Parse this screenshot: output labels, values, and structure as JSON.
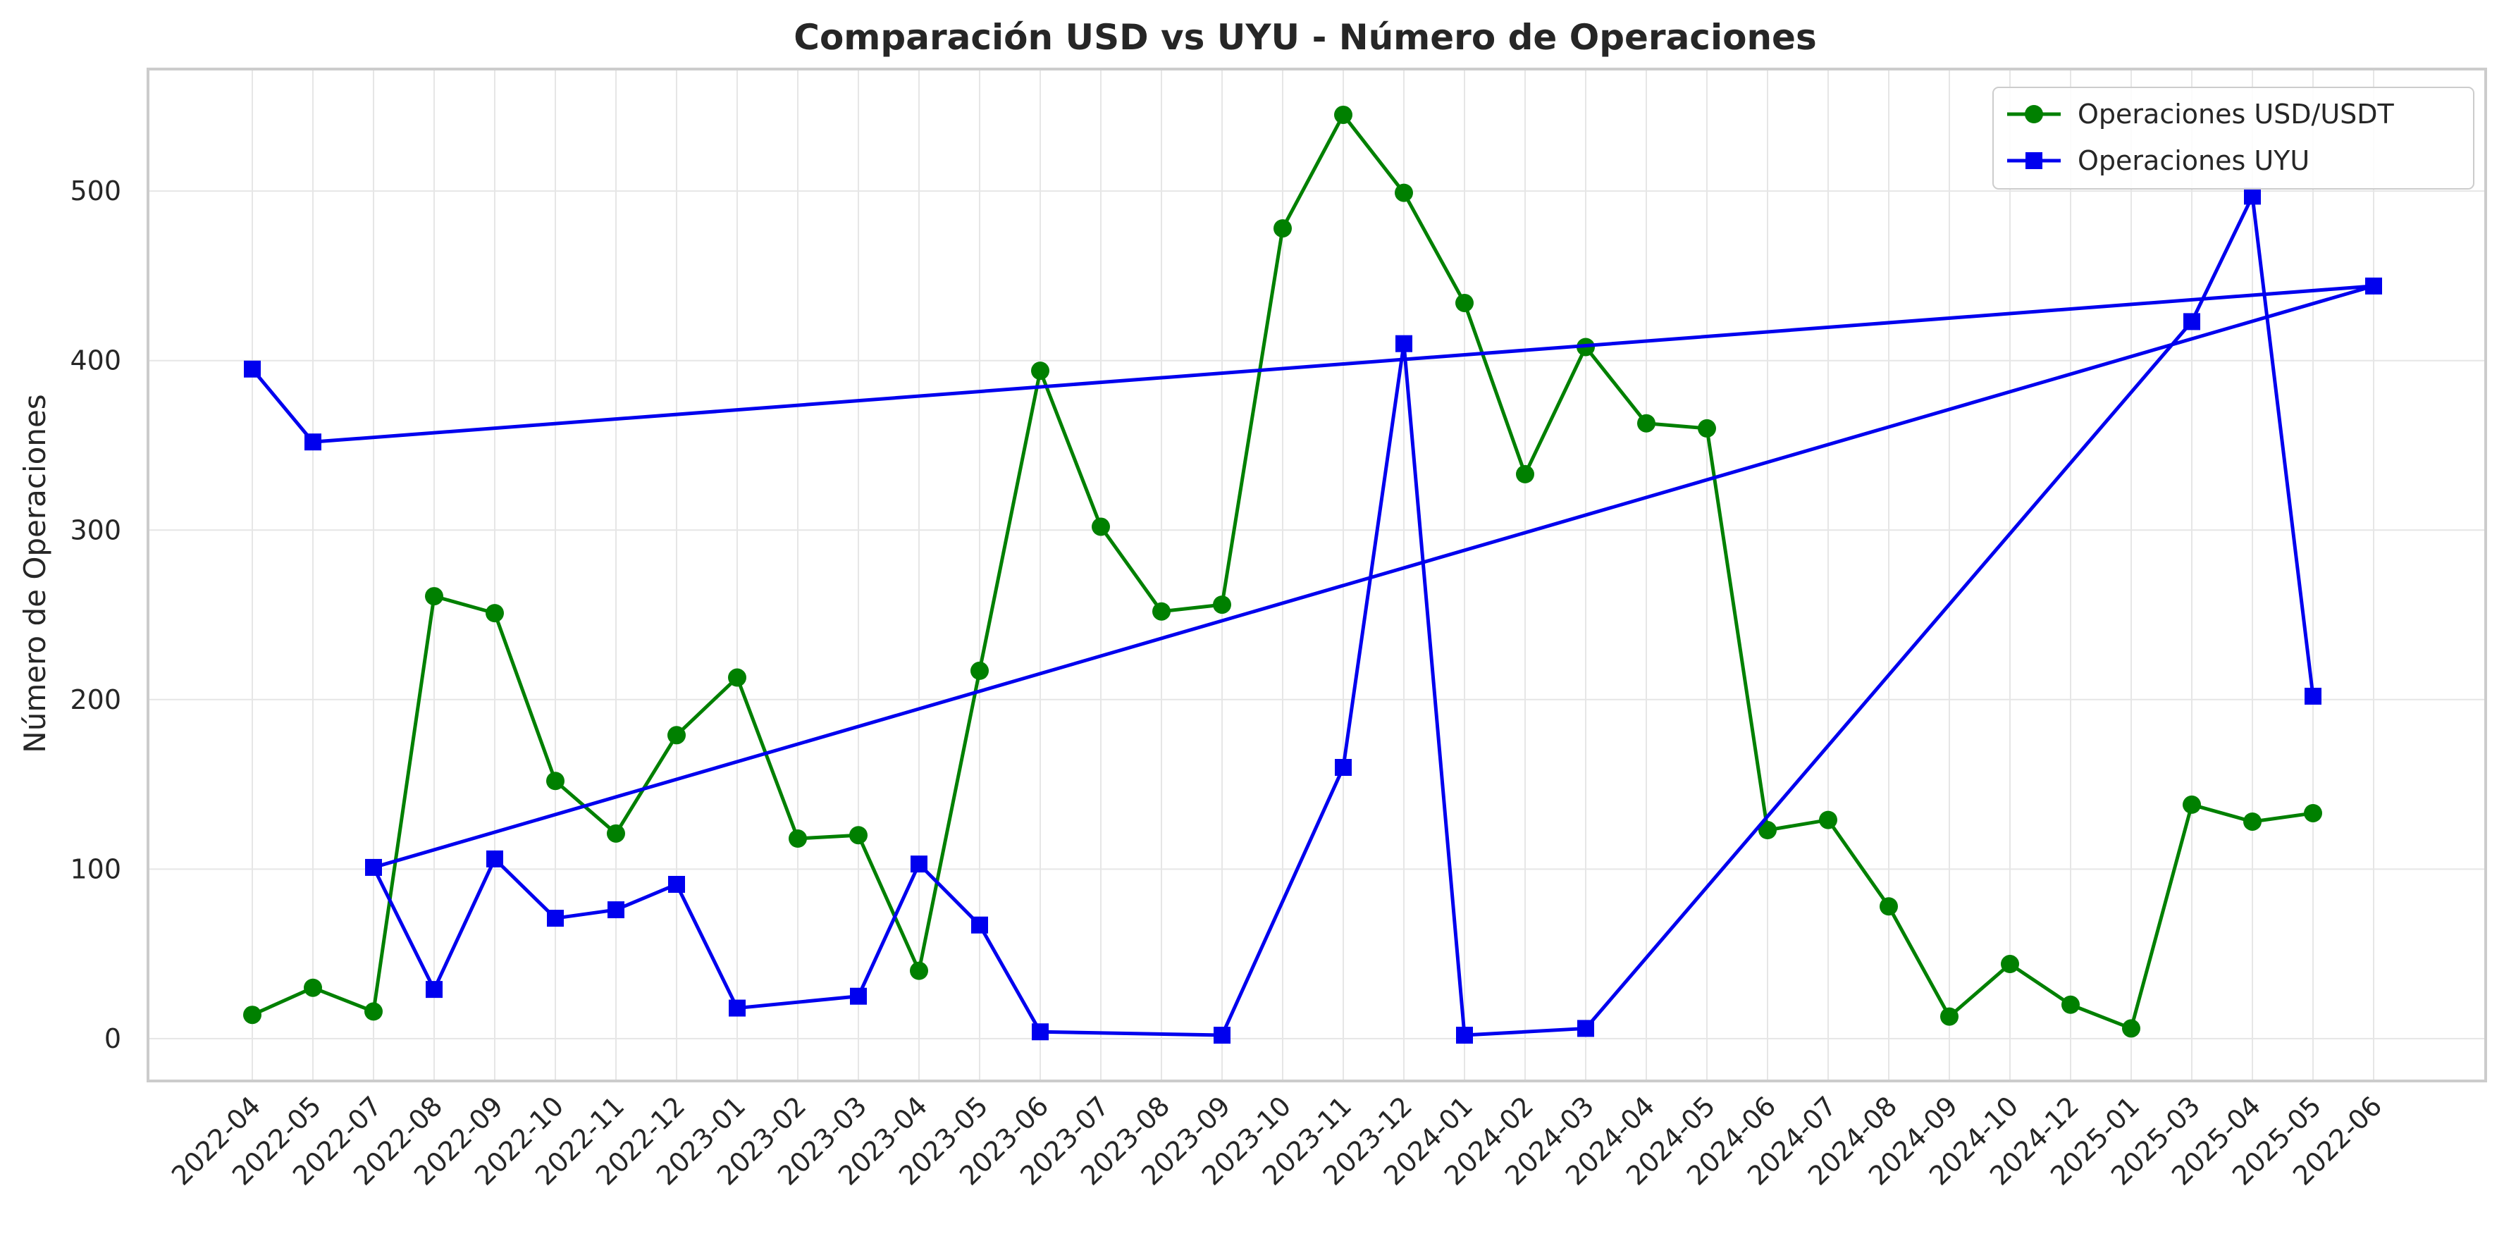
{
  "chart_data": {
    "type": "line",
    "title": "Comparación USD vs UYU - Número de Operaciones",
    "xlabel": "",
    "ylabel": "Número de Operaciones",
    "ylim": [
      -25,
      572
    ],
    "yticks": [
      0,
      100,
      200,
      300,
      400,
      500
    ],
    "grid": true,
    "legend_position": "top-right",
    "categories": [
      "2022-04",
      "2022-05",
      "2022-07",
      "2022-08",
      "2022-09",
      "2022-10",
      "2022-11",
      "2022-12",
      "2023-01",
      "2023-02",
      "2023-03",
      "2023-04",
      "2023-05",
      "2023-06",
      "2023-07",
      "2023-08",
      "2023-09",
      "2023-10",
      "2023-11",
      "2023-12",
      "2024-01",
      "2024-02",
      "2024-03",
      "2024-04",
      "2024-05",
      "2024-06",
      "2024-07",
      "2024-08",
      "2024-09",
      "2024-10",
      "2024-12",
      "2025-01",
      "2025-03",
      "2025-04",
      "2025-05",
      "2022-06"
    ],
    "series": [
      {
        "name": "Operaciones USD/USDT",
        "color": "#008000",
        "marker": "circle",
        "points": [
          [
            "2022-04",
            14
          ],
          [
            "2022-05",
            30
          ],
          [
            "2022-07",
            16
          ],
          [
            "2022-08",
            261
          ],
          [
            "2022-09",
            251
          ],
          [
            "2022-10",
            152
          ],
          [
            "2022-11",
            121
          ],
          [
            "2022-12",
            179
          ],
          [
            "2023-01",
            213
          ],
          [
            "2023-02",
            118
          ],
          [
            "2023-03",
            120
          ],
          [
            "2023-04",
            40
          ],
          [
            "2023-05",
            217
          ],
          [
            "2023-06",
            394
          ],
          [
            "2023-07",
            302
          ],
          [
            "2023-08",
            252
          ],
          [
            "2023-09",
            256
          ],
          [
            "2023-10",
            478
          ],
          [
            "2023-11",
            545
          ],
          [
            "2023-12",
            499
          ],
          [
            "2024-01",
            434
          ],
          [
            "2024-02",
            333
          ],
          [
            "2024-03",
            408
          ],
          [
            "2024-04",
            363
          ],
          [
            "2024-05",
            360
          ],
          [
            "2024-06",
            123
          ],
          [
            "2024-07",
            129
          ],
          [
            "2024-08",
            78
          ],
          [
            "2024-09",
            13
          ],
          [
            "2024-10",
            44
          ],
          [
            "2024-12",
            20
          ],
          [
            "2025-01",
            6
          ],
          [
            "2025-03",
            138
          ],
          [
            "2025-04",
            128
          ],
          [
            "2025-05",
            133
          ]
        ]
      },
      {
        "name": "Operaciones UYU",
        "color": "#0000ee",
        "marker": "square",
        "points": [
          [
            "2022-04",
            395
          ],
          [
            "2022-05",
            352
          ],
          [
            "2022-06",
            444
          ],
          [
            "2022-07",
            101
          ],
          [
            "2022-08",
            29
          ],
          [
            "2022-09",
            106
          ],
          [
            "2022-10",
            71
          ],
          [
            "2022-11",
            76
          ],
          [
            "2022-12",
            91
          ],
          [
            "2023-01",
            18
          ],
          [
            "2023-03",
            25
          ],
          [
            "2023-04",
            103
          ],
          [
            "2023-05",
            67
          ],
          [
            "2023-06",
            4
          ],
          [
            "2023-09",
            2
          ],
          [
            "2023-11",
            160
          ],
          [
            "2023-12",
            410
          ],
          [
            "2024-01",
            2
          ],
          [
            "2024-03",
            6
          ],
          [
            "2025-03",
            423
          ],
          [
            "2025-04",
            497
          ],
          [
            "2025-05",
            202
          ]
        ]
      }
    ]
  }
}
